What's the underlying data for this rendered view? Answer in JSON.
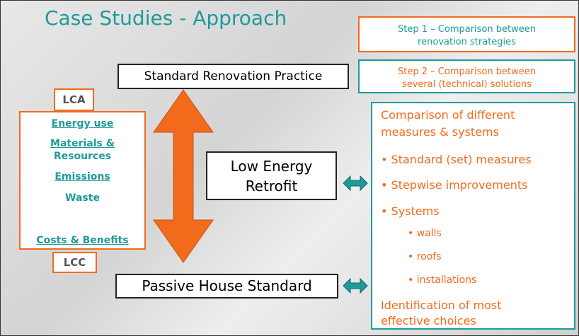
{
  "title": "Case Studies - Approach",
  "steps": [
    {
      "lines": [
        "Step 1 – Comparison between",
        "renovation strategies"
      ]
    },
    {
      "lines": [
        "Step 2 – Comparison between",
        "several (technical) solutions"
      ]
    }
  ],
  "lca": "LCA",
  "lcc": "LCC",
  "impacts": [
    "Energy use",
    "Materials &",
    "Resources",
    "Emissions",
    "Waste",
    "Costs & Benefits"
  ],
  "practices": {
    "standard": "Standard Renovation Practice",
    "low_energy": [
      "Low Energy",
      "Retrofit"
    ],
    "passive": "Passive House Standard"
  },
  "measures": {
    "heading": [
      "Comparison of different",
      "measures & systems"
    ],
    "bullets": [
      "Standard (set) measures",
      "Stepwise improvements",
      "Systems"
    ],
    "sub_bullets": [
      "walls",
      "roofs",
      "installations"
    ],
    "footer": [
      "Identification of most",
      "effective choices"
    ]
  }
}
